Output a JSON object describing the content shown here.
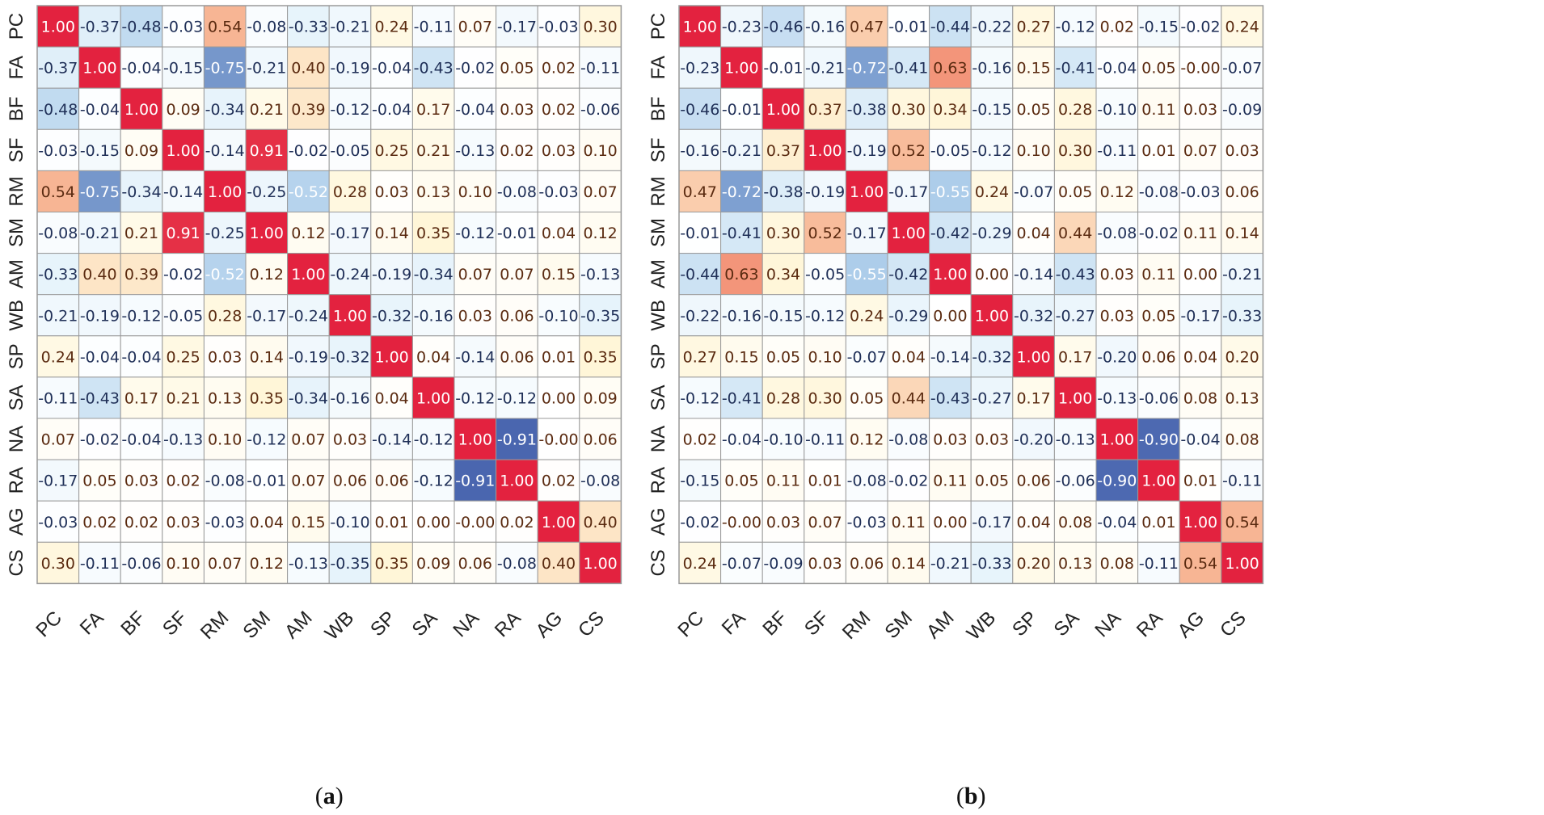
{
  "chart_data": [
    {
      "type": "heatmap",
      "panel_label": "(a)",
      "variables": [
        "PC",
        "FA",
        "BF",
        "SF",
        "RM",
        "SM",
        "AM",
        "WB",
        "SP",
        "SA",
        "NA",
        "RA",
        "AG",
        "CS"
      ],
      "value_range": [
        -1,
        1
      ],
      "values": [
        [
          "1.00",
          "-0.37",
          "-0.48",
          "-0.03",
          "0.54",
          "-0.08",
          "-0.33",
          "-0.21",
          "0.24",
          "-0.11",
          "0.07",
          "-0.17",
          "-0.03",
          "0.30"
        ],
        [
          "-0.37",
          "1.00",
          "-0.04",
          "-0.15",
          "-0.75",
          "-0.21",
          "0.40",
          "-0.19",
          "-0.04",
          "-0.43",
          "-0.02",
          "0.05",
          "0.02",
          "-0.11"
        ],
        [
          "-0.48",
          "-0.04",
          "1.00",
          "0.09",
          "-0.34",
          "0.21",
          "0.39",
          "-0.12",
          "-0.04",
          "0.17",
          "-0.04",
          "0.03",
          "0.02",
          "-0.06"
        ],
        [
          "-0.03",
          "-0.15",
          "0.09",
          "1.00",
          "-0.14",
          "0.91",
          "-0.02",
          "-0.05",
          "0.25",
          "0.21",
          "-0.13",
          "0.02",
          "0.03",
          "0.10"
        ],
        [
          "0.54",
          "-0.75",
          "-0.34",
          "-0.14",
          "1.00",
          "-0.25",
          "-0.52",
          "0.28",
          "0.03",
          "0.13",
          "0.10",
          "-0.08",
          "-0.03",
          "0.07"
        ],
        [
          "-0.08",
          "-0.21",
          "0.21",
          "0.91",
          "-0.25",
          "1.00",
          "0.12",
          "-0.17",
          "0.14",
          "0.35",
          "-0.12",
          "-0.01",
          "0.04",
          "0.12"
        ],
        [
          "-0.33",
          "0.40",
          "0.39",
          "-0.02",
          "-0.52",
          "0.12",
          "1.00",
          "-0.24",
          "-0.19",
          "-0.34",
          "0.07",
          "0.07",
          "0.15",
          "-0.13"
        ],
        [
          "-0.21",
          "-0.19",
          "-0.12",
          "-0.05",
          "0.28",
          "-0.17",
          "-0.24",
          "1.00",
          "-0.32",
          "-0.16",
          "0.03",
          "0.06",
          "-0.10",
          "-0.35"
        ],
        [
          "0.24",
          "-0.04",
          "-0.04",
          "0.25",
          "0.03",
          "0.14",
          "-0.19",
          "-0.32",
          "1.00",
          "0.04",
          "-0.14",
          "0.06",
          "0.01",
          "0.35"
        ],
        [
          "-0.11",
          "-0.43",
          "0.17",
          "0.21",
          "0.13",
          "0.35",
          "-0.34",
          "-0.16",
          "0.04",
          "1.00",
          "-0.12",
          "-0.12",
          "0.00",
          "0.09"
        ],
        [
          "0.07",
          "-0.02",
          "-0.04",
          "-0.13",
          "0.10",
          "-0.12",
          "0.07",
          "0.03",
          "-0.14",
          "-0.12",
          "1.00",
          "-0.91",
          "-0.00",
          "0.06"
        ],
        [
          "-0.17",
          "0.05",
          "0.03",
          "0.02",
          "-0.08",
          "-0.01",
          "0.07",
          "0.06",
          "0.06",
          "-0.12",
          "-0.91",
          "1.00",
          "0.02",
          "-0.08"
        ],
        [
          "-0.03",
          "0.02",
          "0.02",
          "0.03",
          "-0.03",
          "0.04",
          "0.15",
          "-0.10",
          "0.01",
          "0.00",
          "-0.00",
          "0.02",
          "1.00",
          "0.40"
        ],
        [
          "0.30",
          "-0.11",
          "-0.06",
          "0.10",
          "0.07",
          "0.12",
          "-0.13",
          "-0.35",
          "0.35",
          "0.09",
          "0.06",
          "-0.08",
          "0.40",
          "1.00"
        ]
      ]
    },
    {
      "type": "heatmap",
      "panel_label": "(b)",
      "variables": [
        "PC",
        "FA",
        "BF",
        "SF",
        "RM",
        "SM",
        "AM",
        "WB",
        "SP",
        "SA",
        "NA",
        "RA",
        "AG",
        "CS"
      ],
      "value_range": [
        -1,
        1
      ],
      "values": [
        [
          "1.00",
          "-0.23",
          "-0.46",
          "-0.16",
          "0.47",
          "-0.01",
          "-0.44",
          "-0.22",
          "0.27",
          "-0.12",
          "0.02",
          "-0.15",
          "-0.02",
          "0.24"
        ],
        [
          "-0.23",
          "1.00",
          "-0.01",
          "-0.21",
          "-0.72",
          "-0.41",
          "0.63",
          "-0.16",
          "0.15",
          "-0.41",
          "-0.04",
          "0.05",
          "-0.00",
          "-0.07"
        ],
        [
          "-0.46",
          "-0.01",
          "1.00",
          "0.37",
          "-0.38",
          "0.30",
          "0.34",
          "-0.15",
          "0.05",
          "0.28",
          "-0.10",
          "0.11",
          "0.03",
          "-0.09"
        ],
        [
          "-0.16",
          "-0.21",
          "0.37",
          "1.00",
          "-0.19",
          "0.52",
          "-0.05",
          "-0.12",
          "0.10",
          "0.30",
          "-0.11",
          "0.01",
          "0.07",
          "0.03"
        ],
        [
          "0.47",
          "-0.72",
          "-0.38",
          "-0.19",
          "1.00",
          "-0.17",
          "-0.55",
          "0.24",
          "-0.07",
          "0.05",
          "0.12",
          "-0.08",
          "-0.03",
          "0.06"
        ],
        [
          "-0.01",
          "-0.41",
          "0.30",
          "0.52",
          "-0.17",
          "1.00",
          "-0.42",
          "-0.29",
          "0.04",
          "0.44",
          "-0.08",
          "-0.02",
          "0.11",
          "0.14"
        ],
        [
          "-0.44",
          "0.63",
          "0.34",
          "-0.05",
          "-0.55",
          "-0.42",
          "1.00",
          "0.00",
          "-0.14",
          "-0.43",
          "0.03",
          "0.11",
          "0.00",
          "-0.21"
        ],
        [
          "-0.22",
          "-0.16",
          "-0.15",
          "-0.12",
          "0.24",
          "-0.29",
          "0.00",
          "1.00",
          "-0.32",
          "-0.27",
          "0.03",
          "0.05",
          "-0.17",
          "-0.33"
        ],
        [
          "0.27",
          "0.15",
          "0.05",
          "0.10",
          "-0.07",
          "0.04",
          "-0.14",
          "-0.32",
          "1.00",
          "0.17",
          "-0.20",
          "0.06",
          "0.04",
          "0.20"
        ],
        [
          "-0.12",
          "-0.41",
          "0.28",
          "0.30",
          "0.05",
          "0.44",
          "-0.43",
          "-0.27",
          "0.17",
          "1.00",
          "-0.13",
          "-0.06",
          "0.08",
          "0.13"
        ],
        [
          "0.02",
          "-0.04",
          "-0.10",
          "-0.11",
          "0.12",
          "-0.08",
          "0.03",
          "0.03",
          "-0.20",
          "-0.13",
          "1.00",
          "-0.90",
          "-0.04",
          "0.08"
        ],
        [
          "-0.15",
          "0.05",
          "0.11",
          "0.01",
          "-0.08",
          "-0.02",
          "0.11",
          "0.05",
          "0.06",
          "-0.06",
          "-0.90",
          "1.00",
          "0.01",
          "-0.11"
        ],
        [
          "-0.02",
          "-0.00",
          "0.03",
          "0.07",
          "-0.03",
          "0.11",
          "0.00",
          "-0.17",
          "0.04",
          "0.08",
          "-0.04",
          "0.01",
          "1.00",
          "0.54"
        ],
        [
          "0.24",
          "-0.07",
          "-0.09",
          "0.03",
          "0.06",
          "0.14",
          "-0.21",
          "-0.33",
          "0.20",
          "0.13",
          "0.08",
          "-0.11",
          "0.54",
          "1.00"
        ]
      ]
    }
  ],
  "colors": {
    "strong_positive": "#e3223f",
    "mid_positive": "#f4a07f",
    "weak_positive": "#fff6d8",
    "zero": "#ffffff",
    "weak_negative": "#e6f3fb",
    "mid_negative": "#9fc4e6",
    "strong_negative": "#3f5aa8",
    "grid": "#9a9a9a"
  }
}
